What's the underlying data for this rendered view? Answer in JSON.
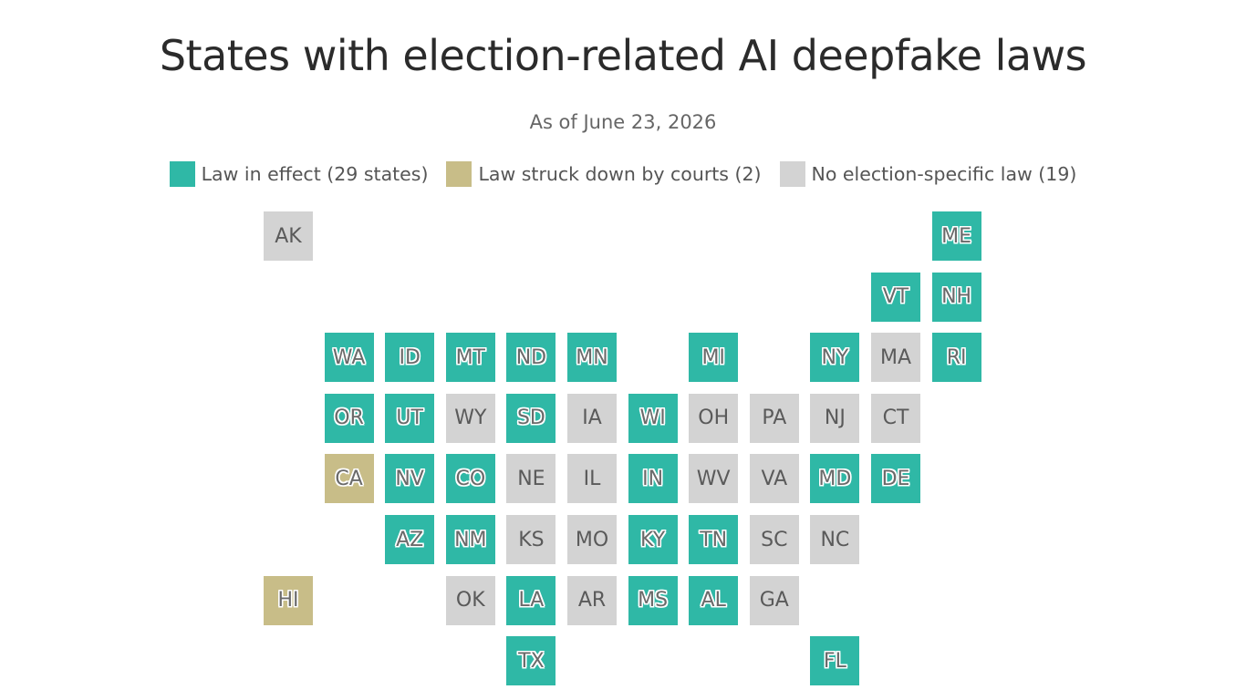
{
  "title": "States with election-related AI deepfake laws",
  "subtitle": "As of June 23, 2026",
  "colors": {
    "effect": "#2fb8a6",
    "struck": "#c8bd88",
    "none": "#d3d3d3"
  },
  "legend": [
    {
      "key": "effect",
      "label": "Law in effect (29 states)"
    },
    {
      "key": "struck",
      "label": "Law struck down by courts (2)"
    },
    {
      "key": "none",
      "label": "No election-specific law (19)"
    }
  ],
  "states": [
    {
      "abbr": "AK",
      "col": 0,
      "row": 0,
      "status": "none"
    },
    {
      "abbr": "ME",
      "col": 11,
      "row": 0,
      "status": "effect"
    },
    {
      "abbr": "VT",
      "col": 10,
      "row": 1,
      "status": "effect"
    },
    {
      "abbr": "NH",
      "col": 11,
      "row": 1,
      "status": "effect"
    },
    {
      "abbr": "WA",
      "col": 1,
      "row": 2,
      "status": "effect"
    },
    {
      "abbr": "ID",
      "col": 2,
      "row": 2,
      "status": "effect"
    },
    {
      "abbr": "MT",
      "col": 3,
      "row": 2,
      "status": "effect"
    },
    {
      "abbr": "ND",
      "col": 4,
      "row": 2,
      "status": "effect"
    },
    {
      "abbr": "MN",
      "col": 5,
      "row": 2,
      "status": "effect"
    },
    {
      "abbr": "MI",
      "col": 7,
      "row": 2,
      "status": "effect"
    },
    {
      "abbr": "NY",
      "col": 9,
      "row": 2,
      "status": "effect"
    },
    {
      "abbr": "MA",
      "col": 10,
      "row": 2,
      "status": "none"
    },
    {
      "abbr": "RI",
      "col": 11,
      "row": 2,
      "status": "effect"
    },
    {
      "abbr": "OR",
      "col": 1,
      "row": 3,
      "status": "effect"
    },
    {
      "abbr": "UT",
      "col": 2,
      "row": 3,
      "status": "effect"
    },
    {
      "abbr": "WY",
      "col": 3,
      "row": 3,
      "status": "none"
    },
    {
      "abbr": "SD",
      "col": 4,
      "row": 3,
      "status": "effect"
    },
    {
      "abbr": "IA",
      "col": 5,
      "row": 3,
      "status": "none"
    },
    {
      "abbr": "WI",
      "col": 6,
      "row": 3,
      "status": "effect"
    },
    {
      "abbr": "OH",
      "col": 7,
      "row": 3,
      "status": "none"
    },
    {
      "abbr": "PA",
      "col": 8,
      "row": 3,
      "status": "none"
    },
    {
      "abbr": "NJ",
      "col": 9,
      "row": 3,
      "status": "none"
    },
    {
      "abbr": "CT",
      "col": 10,
      "row": 3,
      "status": "none"
    },
    {
      "abbr": "CA",
      "col": 1,
      "row": 4,
      "status": "struck"
    },
    {
      "abbr": "NV",
      "col": 2,
      "row": 4,
      "status": "effect"
    },
    {
      "abbr": "CO",
      "col": 3,
      "row": 4,
      "status": "effect"
    },
    {
      "abbr": "NE",
      "col": 4,
      "row": 4,
      "status": "none"
    },
    {
      "abbr": "IL",
      "col": 5,
      "row": 4,
      "status": "none"
    },
    {
      "abbr": "IN",
      "col": 6,
      "row": 4,
      "status": "effect"
    },
    {
      "abbr": "WV",
      "col": 7,
      "row": 4,
      "status": "none"
    },
    {
      "abbr": "VA",
      "col": 8,
      "row": 4,
      "status": "none"
    },
    {
      "abbr": "MD",
      "col": 9,
      "row": 4,
      "status": "effect"
    },
    {
      "abbr": "DE",
      "col": 10,
      "row": 4,
      "status": "effect"
    },
    {
      "abbr": "AZ",
      "col": 2,
      "row": 5,
      "status": "effect"
    },
    {
      "abbr": "NM",
      "col": 3,
      "row": 5,
      "status": "effect"
    },
    {
      "abbr": "KS",
      "col": 4,
      "row": 5,
      "status": "none"
    },
    {
      "abbr": "MO",
      "col": 5,
      "row": 5,
      "status": "none"
    },
    {
      "abbr": "KY",
      "col": 6,
      "row": 5,
      "status": "effect"
    },
    {
      "abbr": "TN",
      "col": 7,
      "row": 5,
      "status": "effect"
    },
    {
      "abbr": "SC",
      "col": 8,
      "row": 5,
      "status": "none"
    },
    {
      "abbr": "NC",
      "col": 9,
      "row": 5,
      "status": "none"
    },
    {
      "abbr": "HI",
      "col": 0,
      "row": 6,
      "status": "struck"
    },
    {
      "abbr": "OK",
      "col": 3,
      "row": 6,
      "status": "none"
    },
    {
      "abbr": "LA",
      "col": 4,
      "row": 6,
      "status": "effect"
    },
    {
      "abbr": "AR",
      "col": 5,
      "row": 6,
      "status": "none"
    },
    {
      "abbr": "MS",
      "col": 6,
      "row": 6,
      "status": "effect"
    },
    {
      "abbr": "AL",
      "col": 7,
      "row": 6,
      "status": "effect"
    },
    {
      "abbr": "GA",
      "col": 8,
      "row": 6,
      "status": "none"
    },
    {
      "abbr": "TX",
      "col": 4,
      "row": 7,
      "status": "effect"
    },
    {
      "abbr": "FL",
      "col": 9,
      "row": 7,
      "status": "effect"
    }
  ]
}
